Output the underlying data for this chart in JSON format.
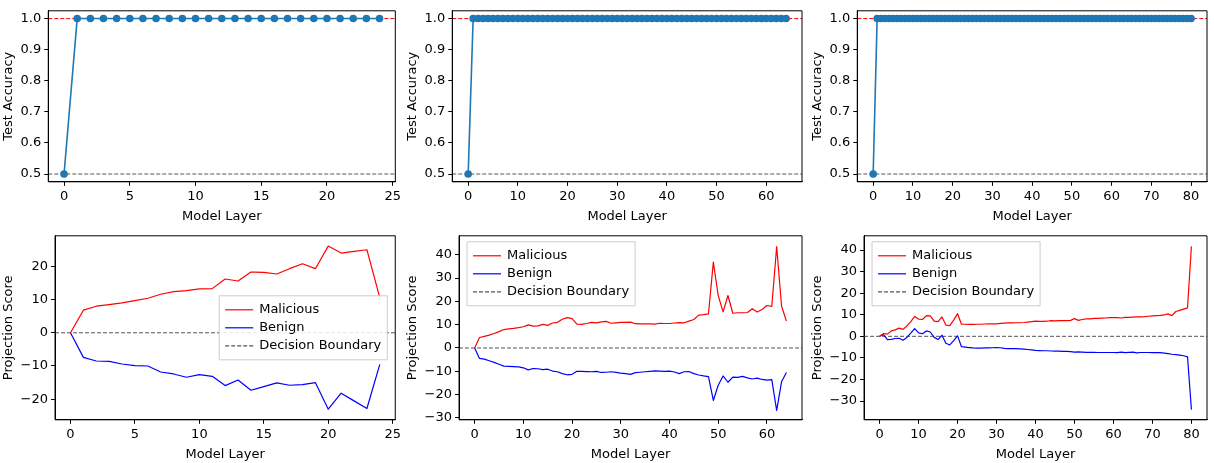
{
  "chart_data": [
    {
      "type": "line",
      "xlabel": "Model Layer",
      "ylabel": "Test Accuracy",
      "marker": "circle",
      "xlim": [
        -1.2,
        25.2
      ],
      "ylim": [
        0.475,
        1.025
      ],
      "xticks": [
        0,
        5,
        10,
        15,
        20,
        25
      ],
      "yticks": [
        0.5,
        0.6,
        0.7,
        0.8,
        0.9,
        {
          "value": 1,
          "label": "1.0"
        }
      ],
      "x": [
        0,
        1,
        2,
        3,
        4,
        5,
        6,
        7,
        8,
        9,
        10,
        11,
        12,
        13,
        14,
        15,
        16,
        17,
        18,
        19,
        20,
        21,
        22,
        23,
        24
      ],
      "series": [
        {
          "color": "#1f77b4",
          "values": [
            0.5,
            1,
            1,
            1,
            1,
            1,
            1,
            1,
            1,
            1,
            1,
            1,
            1,
            1,
            1,
            1,
            1,
            1,
            1,
            1,
            1,
            1,
            1,
            1,
            1
          ]
        }
      ],
      "ref_lines": [
        {
          "axis": "y",
          "value": 1,
          "color": "#ff0000",
          "line_style": "dashed"
        },
        {
          "axis": "y",
          "value": 0.5,
          "color": "#555555",
          "line_style": "dashed"
        }
      ]
    },
    {
      "type": "line",
      "xlabel": "Model Layer",
      "ylabel": "Test Accuracy",
      "marker": "circle",
      "xlim": [
        -3.2,
        67.2
      ],
      "ylim": [
        0.475,
        1.025
      ],
      "xticks": [
        0,
        10,
        20,
        30,
        40,
        50,
        60
      ],
      "yticks": [
        0.5,
        0.6,
        0.7,
        0.8,
        0.9,
        {
          "value": 1,
          "label": "1.0"
        }
      ],
      "x": [
        0,
        1,
        2,
        3,
        4,
        5,
        6,
        7,
        8,
        9,
        10,
        11,
        12,
        13,
        14,
        15,
        16,
        17,
        18,
        19,
        20,
        21,
        22,
        23,
        24,
        25,
        26,
        27,
        28,
        29,
        30,
        31,
        32,
        33,
        34,
        35,
        36,
        37,
        38,
        39,
        40,
        41,
        42,
        43,
        44,
        45,
        46,
        47,
        48,
        49,
        50,
        51,
        52,
        53,
        54,
        55,
        56,
        57,
        58,
        59,
        60,
        61,
        62,
        63,
        64
      ],
      "series": [
        {
          "color": "#1f77b4",
          "values": [
            0.5,
            1,
            1,
            1,
            1,
            1,
            1,
            1,
            1,
            1,
            1,
            1,
            1,
            1,
            1,
            1,
            1,
            1,
            1,
            1,
            1,
            1,
            1,
            1,
            1,
            1,
            1,
            1,
            1,
            1,
            1,
            1,
            1,
            1,
            1,
            1,
            1,
            1,
            1,
            1,
            1,
            1,
            1,
            1,
            1,
            1,
            1,
            1,
            1,
            1,
            1,
            1,
            1,
            1,
            1,
            1,
            1,
            1,
            1,
            1,
            1,
            1,
            1,
            1,
            1
          ]
        }
      ],
      "ref_lines": [
        {
          "axis": "y",
          "value": 1,
          "color": "#ff0000",
          "line_style": "dashed"
        },
        {
          "axis": "y",
          "value": 0.5,
          "color": "#555555",
          "line_style": "dashed"
        }
      ]
    },
    {
      "type": "line",
      "xlabel": "Model Layer",
      "ylabel": "Test Accuracy",
      "marker": "circle",
      "xlim": [
        -4,
        84
      ],
      "ylim": [
        0.475,
        1.025
      ],
      "xticks": [
        0,
        10,
        20,
        30,
        40,
        50,
        60,
        70,
        80
      ],
      "yticks": [
        0.5,
        0.6,
        0.7,
        0.8,
        0.9,
        {
          "value": 1,
          "label": "1.0"
        }
      ],
      "x": [
        0,
        1,
        2,
        3,
        4,
        5,
        6,
        7,
        8,
        9,
        10,
        11,
        12,
        13,
        14,
        15,
        16,
        17,
        18,
        19,
        20,
        21,
        22,
        23,
        24,
        25,
        26,
        27,
        28,
        29,
        30,
        31,
        32,
        33,
        34,
        35,
        36,
        37,
        38,
        39,
        40,
        41,
        42,
        43,
        44,
        45,
        46,
        47,
        48,
        49,
        50,
        51,
        52,
        53,
        54,
        55,
        56,
        57,
        58,
        59,
        60,
        61,
        62,
        63,
        64,
        65,
        66,
        67,
        68,
        69,
        70,
        71,
        72,
        73,
        74,
        75,
        76,
        77,
        78,
        79,
        80
      ],
      "series": [
        {
          "color": "#1f77b4",
          "values": [
            0.5,
            1,
            1,
            1,
            1,
            1,
            1,
            1,
            1,
            1,
            1,
            1,
            1,
            1,
            1,
            1,
            1,
            1,
            1,
            1,
            1,
            1,
            1,
            1,
            1,
            1,
            1,
            1,
            1,
            1,
            1,
            1,
            1,
            1,
            1,
            1,
            1,
            1,
            1,
            1,
            1,
            1,
            1,
            1,
            1,
            1,
            1,
            1,
            1,
            1,
            1,
            1,
            1,
            1,
            1,
            1,
            1,
            1,
            1,
            1,
            1,
            1,
            1,
            1,
            1,
            1,
            1,
            1,
            1,
            1,
            1,
            1,
            1,
            1,
            1,
            1,
            1,
            1,
            1,
            1,
            1
          ]
        }
      ],
      "ref_lines": [
        {
          "axis": "y",
          "value": 1,
          "color": "#ff0000",
          "line_style": "dashed"
        },
        {
          "axis": "y",
          "value": 0.5,
          "color": "#555555",
          "line_style": "dashed"
        }
      ]
    },
    {
      "type": "line",
      "xlabel": "Model Layer",
      "ylabel": "Projection Score",
      "legend": "right",
      "xlim": [
        -1.2,
        25.2
      ],
      "ylim": [
        -26.2,
        29.2
      ],
      "xticks": [
        0,
        5,
        10,
        15,
        20,
        25
      ],
      "yticks": [
        {
          "value": -20,
          "label": "−20"
        },
        {
          "value": -10,
          "label": "−10"
        },
        0,
        10,
        20
      ],
      "x": [
        0,
        1,
        2,
        3,
        4,
        5,
        6,
        7,
        8,
        9,
        10,
        11,
        12,
        13,
        14,
        15,
        16,
        17,
        18,
        19,
        20,
        21,
        22,
        23,
        24
      ],
      "series": [
        {
          "name": "Malicious",
          "color": "#ff0000",
          "values": [
            0,
            6.8,
            8,
            8.5,
            9,
            9.7,
            10.4,
            11.6,
            12.4,
            12.7,
            13.2,
            13.3,
            16.2,
            15.6,
            18.3,
            18.2,
            17.7,
            19.3,
            20.8,
            19.3,
            26.1,
            24,
            24.5,
            25,
            10.6
          ]
        },
        {
          "name": "Benign",
          "color": "#0000ff",
          "values": [
            0,
            -7.4,
            -8.5,
            -8.6,
            -9.4,
            -9.9,
            -10,
            -11.8,
            -12.4,
            -13.4,
            -12.6,
            -13.1,
            -15.9,
            -14.2,
            -17.3,
            -16.2,
            -15.1,
            -15.8,
            -15.6,
            -15,
            -23,
            -18.2,
            -20.5,
            -22.8,
            -9.5
          ]
        }
      ],
      "ref_lines": [
        {
          "axis": "y",
          "value": 0,
          "label": "Decision Boundary",
          "color": "#555555",
          "line_style": "dashed"
        }
      ]
    },
    {
      "type": "line",
      "xlabel": "Model Layer",
      "ylabel": "Projection Score",
      "legend": "top left",
      "xlim": [
        -3.2,
        67.2
      ],
      "ylim": [
        -30.8,
        48.1
      ],
      "xticks": [
        0,
        10,
        20,
        30,
        40,
        50,
        60
      ],
      "yticks": [
        {
          "value": -30,
          "label": "−30"
        },
        {
          "value": -20,
          "label": "−20"
        },
        {
          "value": -10,
          "label": "−10"
        },
        0,
        10,
        20,
        30,
        40
      ],
      "x": [
        0,
        1,
        2,
        3,
        4,
        5,
        6,
        7,
        8,
        9,
        10,
        11,
        12,
        13,
        14,
        15,
        16,
        17,
        18,
        19,
        20,
        21,
        22,
        23,
        24,
        25,
        26,
        27,
        28,
        29,
        30,
        31,
        32,
        33,
        34,
        35,
        36,
        37,
        38,
        39,
        40,
        41,
        42,
        43,
        44,
        45,
        46,
        47,
        48,
        49,
        50,
        51,
        52,
        53,
        54,
        55,
        56,
        57,
        58,
        59,
        60,
        61,
        62,
        63,
        64
      ],
      "series": [
        {
          "name": "Malicious",
          "color": "#ff0000",
          "values": [
            0,
            4.5,
            5,
            5.5,
            6.2,
            7,
            7.9,
            8.2,
            8.4,
            8.7,
            9.1,
            9.9,
            9.4,
            9.5,
            10.1,
            9.7,
            10.7,
            11,
            12.3,
            13,
            12.6,
            10.2,
            10.1,
            10.5,
            11,
            10.8,
            11.2,
            11.4,
            10.6,
            10.8,
            11,
            11,
            11.1,
            10.4,
            10.3,
            10.3,
            10.3,
            10.2,
            10.6,
            10.5,
            10.5,
            10.7,
            10.9,
            10.8,
            11.5,
            12.2,
            14.1,
            14.3,
            14.6,
            36.8,
            22.5,
            15.5,
            22.5,
            14.9,
            15.1,
            15.1,
            15.2,
            16.8,
            15.4,
            16.5,
            18.2,
            17.8,
            43.5,
            18,
            11.5
          ]
        },
        {
          "name": "Benign",
          "color": "#0000ff",
          "values": [
            0,
            -4.5,
            -4.8,
            -5.5,
            -6.2,
            -7,
            -7.8,
            -7.9,
            -8,
            -8.1,
            -8.5,
            -9.4,
            -8.8,
            -8.9,
            -9.3,
            -9.1,
            -9.9,
            -10.2,
            -11,
            -11.5,
            -11.3,
            -10,
            -10,
            -10.1,
            -10.2,
            -10,
            -10.5,
            -10.4,
            -10.2,
            -10.5,
            -10.8,
            -11,
            -11.3,
            -10.6,
            -10.4,
            -10.2,
            -10,
            -9.8,
            -9.9,
            -10,
            -9.9,
            -10.3,
            -11,
            -10.2,
            -10.1,
            -11,
            -11.6,
            -12,
            -12.3,
            -22.5,
            -16,
            -12,
            -14.7,
            -12.5,
            -12.6,
            -12.2,
            -12.8,
            -13.3,
            -12.9,
            -13.5,
            -13.8,
            -13.6,
            -26.8,
            -14.5,
            -10.5
          ]
        }
      ],
      "ref_lines": [
        {
          "axis": "y",
          "value": 0,
          "label": "Decision Boundary",
          "color": "#555555",
          "line_style": "dashed"
        }
      ]
    },
    {
      "type": "line",
      "xlabel": "Model Layer",
      "ylabel": "Projection Score",
      "legend": "top left",
      "xlim": [
        -4,
        84
      ],
      "ylim": [
        -38.7,
        46.6
      ],
      "xticks": [
        0,
        10,
        20,
        30,
        40,
        50,
        60,
        70,
        80
      ],
      "yticks": [
        {
          "value": -30,
          "label": "−30"
        },
        {
          "value": -20,
          "label": "−20"
        },
        {
          "value": -10,
          "label": "−10"
        },
        0,
        10,
        20,
        30,
        40
      ],
      "x": [
        0,
        1,
        2,
        3,
        4,
        5,
        6,
        7,
        8,
        9,
        10,
        11,
        12,
        13,
        14,
        15,
        16,
        17,
        18,
        19,
        20,
        21,
        22,
        23,
        24,
        25,
        26,
        27,
        28,
        29,
        30,
        31,
        32,
        33,
        34,
        35,
        36,
        37,
        38,
        39,
        40,
        41,
        42,
        43,
        44,
        45,
        46,
        47,
        48,
        49,
        50,
        51,
        52,
        53,
        54,
        55,
        56,
        57,
        58,
        59,
        60,
        61,
        62,
        63,
        64,
        65,
        66,
        67,
        68,
        69,
        70,
        71,
        72,
        73,
        74,
        75,
        76,
        77,
        78,
        79,
        80
      ],
      "series": [
        {
          "name": "Malicious",
          "color": "#ff0000",
          "values": [
            0,
            1.3,
            1,
            2.5,
            3,
            3.8,
            3.2,
            4.8,
            6.8,
            9.2,
            8,
            7.8,
            9.6,
            9.5,
            7,
            6.8,
            9,
            5.2,
            5,
            7.5,
            10.5,
            5.6,
            5.6,
            5.5,
            5.5,
            5.6,
            5.6,
            5.7,
            5.8,
            5.8,
            5.8,
            6,
            6.1,
            6.2,
            6.2,
            6.3,
            6.3,
            6.4,
            6.6,
            6.8,
            7,
            6.9,
            6.9,
            7,
            7.3,
            7.2,
            7.3,
            7.3,
            7.3,
            7.4,
            8.2,
            7.4,
            7.8,
            8.1,
            8.1,
            8.3,
            8.3,
            8.4,
            8.5,
            8.7,
            8.7,
            8.7,
            8.5,
            8.8,
            8.8,
            8.9,
            9,
            9,
            9.1,
            9.3,
            9.5,
            9.6,
            9.7,
            9.9,
            10.4,
            9.6,
            11.5,
            12,
            12.6,
            13.2,
            41.7
          ]
        },
        {
          "name": "Benign",
          "color": "#0000ff",
          "values": [
            0,
            0.8,
            -1.5,
            -1.4,
            -1,
            -0.9,
            -1.8,
            -0.5,
            1.5,
            3.6,
            1.6,
            1.2,
            2.5,
            2,
            -0.5,
            -1.5,
            0.5,
            -3.2,
            -4,
            -2,
            0.2,
            -4.8,
            -5,
            -5.2,
            -5.4,
            -5.5,
            -5.5,
            -5.4,
            -5.4,
            -5.3,
            -5.2,
            -5.3,
            -5.6,
            -5.7,
            -5.7,
            -5.7,
            -5.8,
            -5.9,
            -6.1,
            -6.3,
            -6.5,
            -6.6,
            -6.7,
            -6.7,
            -6.8,
            -6.9,
            -6.9,
            -7,
            -7,
            -7.1,
            -7.3,
            -7.2,
            -7.3,
            -7.4,
            -7.4,
            -7.4,
            -7.5,
            -7.5,
            -7.5,
            -7.5,
            -7.5,
            -7.6,
            -7.3,
            -7.6,
            -7.4,
            -7.3,
            -7.7,
            -7.5,
            -7.5,
            -7.5,
            -7.6,
            -7.6,
            -7.6,
            -7.8,
            -8,
            -8.3,
            -8.5,
            -8.7,
            -9,
            -9.5,
            -34
          ]
        }
      ],
      "ref_lines": [
        {
          "axis": "y",
          "value": 0,
          "label": "Decision Boundary",
          "color": "#555555",
          "line_style": "dashed"
        }
      ]
    }
  ]
}
